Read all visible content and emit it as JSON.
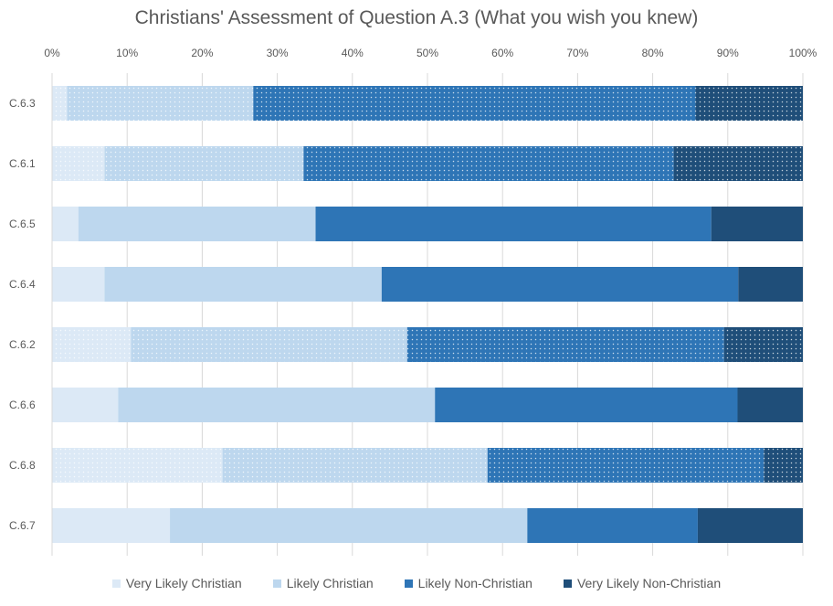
{
  "chart_data": {
    "type": "bar",
    "orientation": "horizontal",
    "stacked": "percent",
    "title": "Christians' Assessment of Question A.3 (What you wish you knew)",
    "x_ticks": [
      "0%",
      "10%",
      "20%",
      "30%",
      "40%",
      "50%",
      "60%",
      "70%",
      "80%",
      "90%",
      "100%"
    ],
    "xlim": [
      0,
      100
    ],
    "categories": [
      "C.6.3",
      "C.6.1",
      "C.6.5",
      "C.6.4",
      "C.6.2",
      "C.6.6",
      "C.6.8",
      "C.6.7"
    ],
    "series": [
      {
        "name": "Very Likely Christian",
        "color": "#dce9f6",
        "values": [
          2,
          7,
          3.5,
          7,
          10.5,
          8.8,
          22.7,
          15.7
        ]
      },
      {
        "name": "Likely Christian",
        "color": "#bdd7ee",
        "values": [
          24.8,
          26.5,
          31.6,
          36.9,
          36.8,
          42.2,
          35.3,
          47.6
        ]
      },
      {
        "name": "Likely Non-Christian",
        "color": "#2e75b6",
        "values": [
          58.9,
          49.3,
          52.7,
          47.5,
          42.2,
          40.3,
          36.8,
          22.7
        ]
      },
      {
        "name": "Very Likely Non-Christian",
        "color": "#1f4e79",
        "values": [
          14.3,
          17.2,
          12.2,
          8.6,
          10.5,
          8.7,
          5.2,
          14
        ]
      }
    ],
    "patterned_rows": [
      "C.6.3",
      "C.6.1",
      "C.6.2",
      "C.6.8"
    ],
    "grid": true,
    "legend_position": "bottom"
  }
}
